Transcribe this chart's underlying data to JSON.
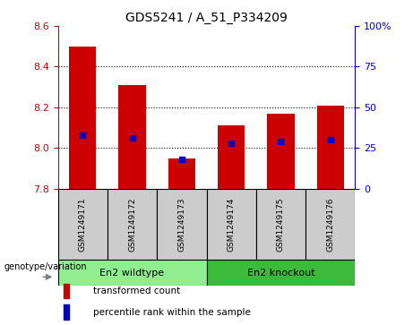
{
  "title": "GDS5241 / A_51_P334209",
  "samples": [
    "GSM1249171",
    "GSM1249172",
    "GSM1249173",
    "GSM1249174",
    "GSM1249175",
    "GSM1249176"
  ],
  "bar_values": [
    8.5,
    8.31,
    7.95,
    8.11,
    8.17,
    8.21
  ],
  "percentile_values": [
    33,
    31,
    18,
    28,
    29,
    30
  ],
  "y_min": 7.8,
  "y_max": 8.6,
  "y_ticks": [
    7.8,
    8.0,
    8.2,
    8.4,
    8.6
  ],
  "right_y_ticks": [
    0,
    25,
    50,
    75,
    100
  ],
  "bar_color": "#cc0000",
  "percentile_color": "#0000cc",
  "bar_width": 0.55,
  "groups": [
    {
      "label": "En2 wildtype",
      "start": 0,
      "end": 2,
      "color": "#90ee90"
    },
    {
      "label": "En2 knockout",
      "start": 3,
      "end": 5,
      "color": "#3cba3c"
    }
  ],
  "legend_items": [
    {
      "label": "transformed count",
      "color": "#cc0000"
    },
    {
      "label": "percentile rank within the sample",
      "color": "#0000cc"
    }
  ],
  "sample_box_color": "#cccccc",
  "title_color": "#000000",
  "left_axis_color": "#cc0000",
  "right_axis_color": "#0000cc",
  "grid_dotted_ticks": [
    8.0,
    8.2,
    8.4
  ]
}
